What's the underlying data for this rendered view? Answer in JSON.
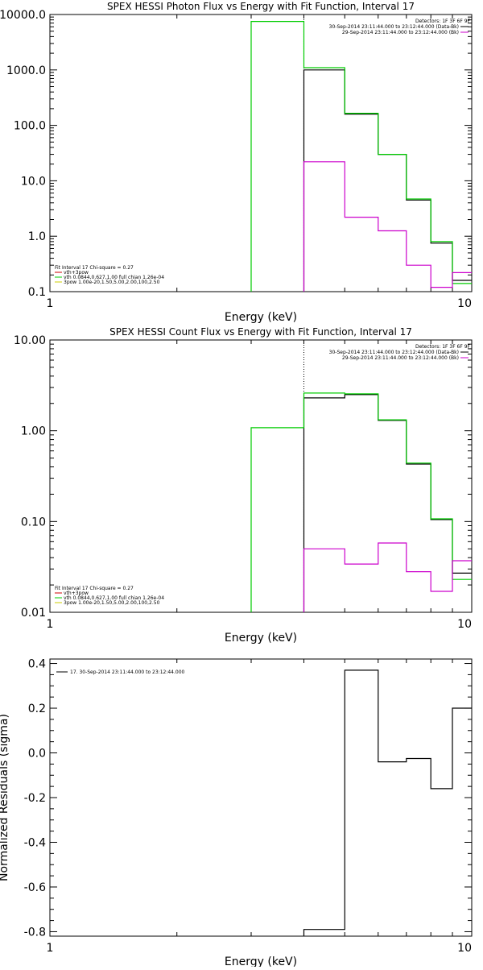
{
  "chart_data": [
    {
      "type": "line",
      "step": true,
      "title": "SPEX HESSI Photon Flux vs Energy with Fit Function, Interval 17",
      "xlabel": "Energy (keV)",
      "ylabel": "",
      "xscale": "log",
      "yscale": "log",
      "xlim": [
        1,
        10
      ],
      "ylim": [
        0.1,
        10000
      ],
      "x_ticks": [
        1,
        10
      ],
      "x_tick_labels": [
        "1",
        "10"
      ],
      "y_ticks": [
        0.1,
        1,
        10,
        100,
        1000,
        10000
      ],
      "y_tick_labels": [
        "0.1",
        "1.0",
        "10.0",
        "100.0",
        "1000.0",
        "10000.0"
      ],
      "bin_edges": [
        3,
        4,
        5,
        6,
        7,
        8,
        9,
        10
      ],
      "marker_x": 4,
      "series": [
        {
          "color": "#000000",
          "values": [
            null,
            1000,
            160,
            30,
            4.5,
            0.75,
            0.16
          ]
        },
        {
          "color": "#00cc00",
          "values": [
            7500,
            1100,
            165,
            30,
            4.7,
            0.8,
            0.14
          ]
        },
        {
          "color": "#cc00cc",
          "values": [
            null,
            22,
            2.2,
            1.25,
            0.3,
            0.12,
            0.22
          ]
        }
      ],
      "legend_top": {
        "heading": "Detectors: 1F 3F 6F 9F",
        "entries": [
          {
            "text": "30-Sep-2014 23:11:44.000 to 23:12:44.000 (Data-Bk)",
            "color": "#000000"
          },
          {
            "text": "29-Sep-2014 23:11:44.000 to 23:12:44.000 (Bk)",
            "color": "#cc00cc"
          }
        ]
      },
      "legend_bottom": {
        "heading": "Fit Interval 17    Chi-square = 0.27",
        "entries": [
          {
            "text": "vth+3pow",
            "color": "#cc0000"
          },
          {
            "text": "vth 0.0844,0.627,1.00  full chian 1.26e-04",
            "color": "#00cc00"
          },
          {
            "text": "3pow 1.00e-20,1.50,5.00,2.00,100,2.50",
            "color": "#cccc00"
          }
        ]
      }
    },
    {
      "type": "line",
      "step": true,
      "title": "SPEX HESSI Count Flux vs Energy with Fit Function, Interval 17",
      "xlabel": "Energy (keV)",
      "ylabel": "",
      "xscale": "log",
      "yscale": "log",
      "xlim": [
        1,
        10
      ],
      "ylim": [
        0.01,
        10
      ],
      "x_ticks": [
        1,
        10
      ],
      "x_tick_labels": [
        "1",
        "10"
      ],
      "y_ticks": [
        0.01,
        0.1,
        1,
        10
      ],
      "y_tick_labels": [
        "0.01",
        "0.10",
        "1.00",
        "10.00"
      ],
      "bin_edges": [
        3,
        4,
        5,
        6,
        7,
        8,
        9,
        10
      ],
      "marker_x": 4,
      "series": [
        {
          "color": "#000000",
          "values": [
            null,
            2.3,
            2.5,
            1.3,
            0.43,
            0.105,
            0.027
          ]
        },
        {
          "color": "#00cc00",
          "values": [
            1.08,
            2.6,
            2.55,
            1.32,
            0.44,
            0.107,
            0.023
          ]
        },
        {
          "color": "#cc00cc",
          "values": [
            null,
            0.05,
            0.034,
            0.058,
            0.028,
            0.017,
            0.037
          ]
        }
      ],
      "legend_top": {
        "heading": "Detectors: 1F 3F 6F 9F",
        "entries": [
          {
            "text": "30-Sep-2014 23:11:44.000 to 23:12:44.000 (Data-Bk)",
            "color": "#000000"
          },
          {
            "text": "29-Sep-2014 23:11:44.000 to 23:12:44.000 (Bk)",
            "color": "#cc00cc"
          }
        ]
      },
      "legend_bottom": {
        "heading": "Fit Interval 17    Chi-square = 0.27",
        "entries": [
          {
            "text": "vth+3pow",
            "color": "#cc0000"
          },
          {
            "text": "vth 0.0844,0.627,1.00  full chian 1.26e-04",
            "color": "#00cc00"
          },
          {
            "text": "3pow 1.00e-20,1.50,5.00,2.00,100,2.50",
            "color": "#cccc00"
          }
        ]
      }
    },
    {
      "type": "line",
      "step": true,
      "title": "",
      "xlabel": "Energy (keV)",
      "ylabel": "Normalized Residuals (sigma)",
      "xscale": "log",
      "yscale": "linear",
      "xlim": [
        1,
        10
      ],
      "ylim": [
        -0.82,
        0.42
      ],
      "x_ticks": [
        1,
        10
      ],
      "x_tick_labels": [
        "1",
        "10"
      ],
      "y_ticks": [
        -0.8,
        -0.6,
        -0.4,
        -0.2,
        0.0,
        0.2,
        0.4
      ],
      "y_tick_labels": [
        "-0.8",
        "-0.6",
        "-0.4",
        "-0.2",
        "0.0",
        "0.2",
        "0.4"
      ],
      "bin_edges": [
        4,
        5,
        6,
        7,
        8,
        9,
        10
      ],
      "series": [
        {
          "color": "#000000",
          "values": [
            -0.79,
            0.37,
            -0.04,
            -0.025,
            -0.16,
            0.2
          ]
        }
      ],
      "legend_top": {
        "entries": [
          {
            "text": "17. 30-Sep-2014 23:11:44.000 to 23:12:44.000",
            "color": "#000000"
          }
        ]
      }
    }
  ]
}
